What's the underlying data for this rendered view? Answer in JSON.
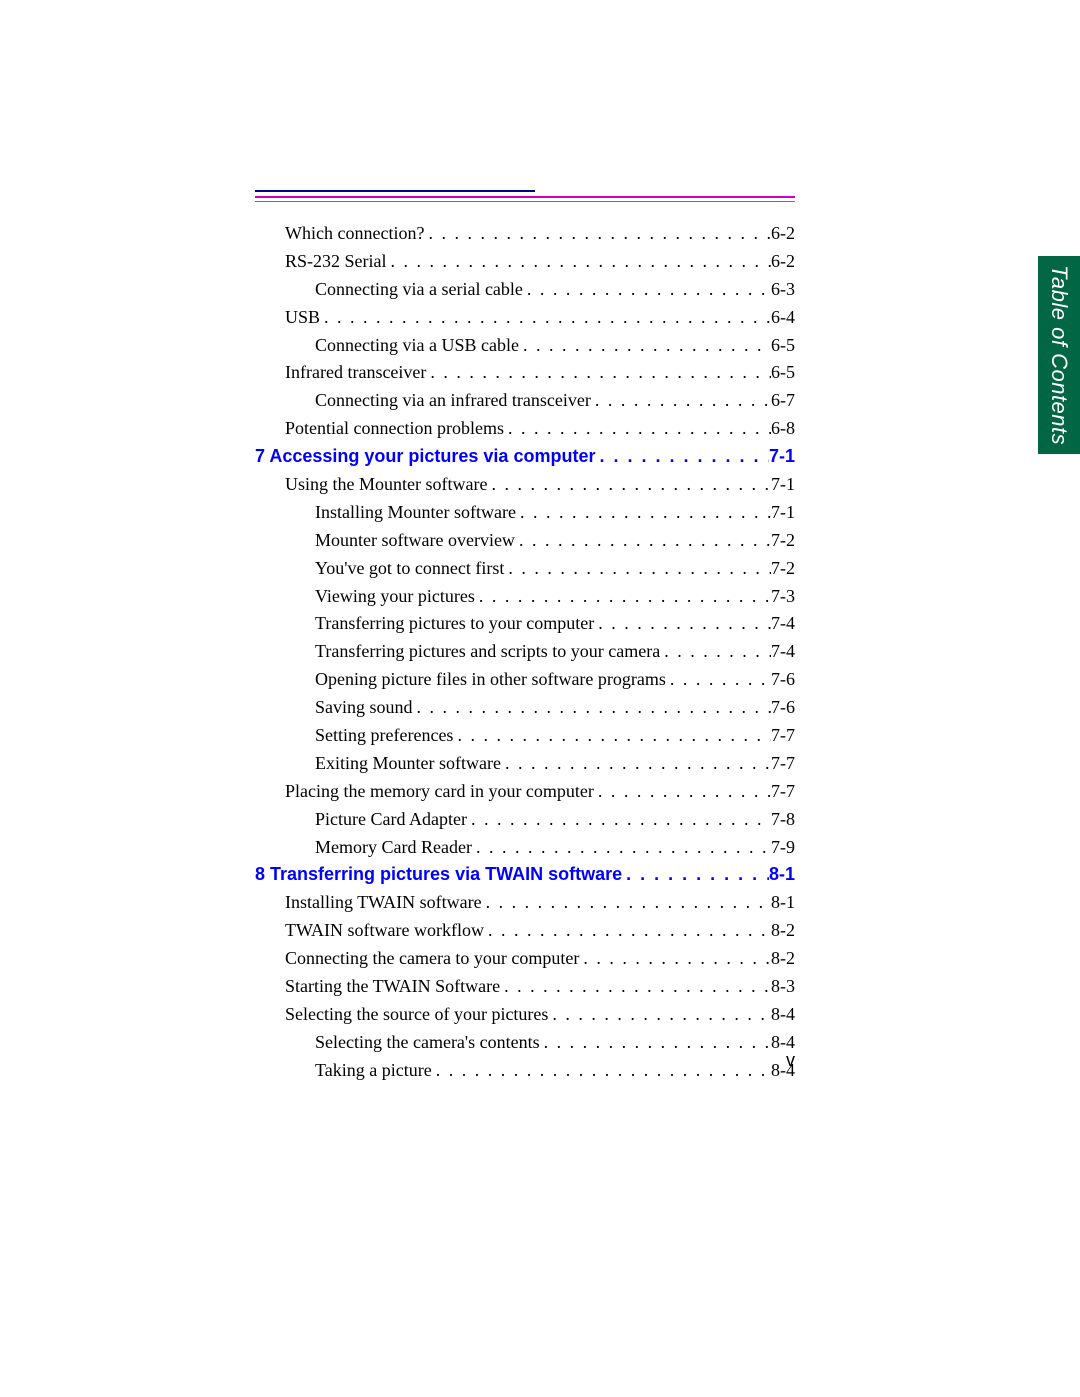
{
  "sideTab": "Table of Contents",
  "pageNumber": "v",
  "colors": {
    "chapter_link": "#0000ff",
    "side_tab_bg": "#006644",
    "side_tab_text": "#ffffff",
    "rule_blue": "#000088",
    "rule_magenta": "#cc00cc",
    "rule_violet": "#7060d0",
    "text": "#000000",
    "background": "#ffffff"
  },
  "typography": {
    "body_font": "Times New Roman",
    "heading_font": "Arial",
    "body_size_pt": 13,
    "chapter_size_pt": 13
  },
  "entries": [
    {
      "label": "Which connection?",
      "page": "6-2",
      "indent": 1,
      "chapter": false
    },
    {
      "label": "RS-232 Serial",
      "page": "6-2",
      "indent": 1,
      "chapter": false
    },
    {
      "label": "Connecting via a serial cable",
      "page": "6-3",
      "indent": 2,
      "chapter": false
    },
    {
      "label": "USB",
      "page": "6-4",
      "indent": 1,
      "chapter": false
    },
    {
      "label": "Connecting via a USB cable",
      "page": "6-5",
      "indent": 2,
      "chapter": false
    },
    {
      "label": "Infrared transceiver",
      "page": "6-5",
      "indent": 1,
      "chapter": false
    },
    {
      "label": "Connecting via an infrared transceiver",
      "page": "6-7",
      "indent": 2,
      "chapter": false
    },
    {
      "label": "Potential connection problems",
      "page": "6-8",
      "indent": 1,
      "chapter": false
    },
    {
      "label": "7 Accessing your pictures via computer",
      "page": "7-1",
      "indent": 0,
      "chapter": true
    },
    {
      "label": "Using the Mounter software",
      "page": "7-1",
      "indent": 1,
      "chapter": false
    },
    {
      "label": "Installing Mounter software",
      "page": "7-1",
      "indent": 2,
      "chapter": false
    },
    {
      "label": "Mounter software overview",
      "page": "7-2",
      "indent": 2,
      "chapter": false
    },
    {
      "label": "You've got to connect first",
      "page": "7-2",
      "indent": 2,
      "chapter": false
    },
    {
      "label": "Viewing your pictures",
      "page": "7-3",
      "indent": 2,
      "chapter": false
    },
    {
      "label": "Transferring pictures to your computer",
      "page": "7-4",
      "indent": 2,
      "chapter": false
    },
    {
      "label": "Transferring pictures and scripts to your camera",
      "page": "7-4",
      "indent": 2,
      "chapter": false
    },
    {
      "label": "Opening picture files in other software programs",
      "page": "7-6",
      "indent": 2,
      "chapter": false
    },
    {
      "label": "Saving sound",
      "page": "7-6",
      "indent": 2,
      "chapter": false
    },
    {
      "label": "Setting preferences",
      "page": "7-7",
      "indent": 2,
      "chapter": false
    },
    {
      "label": "Exiting Mounter software",
      "page": "7-7",
      "indent": 2,
      "chapter": false
    },
    {
      "label": "Placing the memory card in your computer",
      "page": "7-7",
      "indent": 1,
      "chapter": false
    },
    {
      "label": "Picture Card Adapter",
      "page": "7-8",
      "indent": 2,
      "chapter": false
    },
    {
      "label": "Memory Card Reader",
      "page": "7-9",
      "indent": 2,
      "chapter": false
    },
    {
      "label": "8 Transferring pictures via TWAIN software",
      "page": "8-1",
      "indent": 0,
      "chapter": true
    },
    {
      "label": "Installing TWAIN software",
      "page": "8-1",
      "indent": 1,
      "chapter": false
    },
    {
      "label": "TWAIN software workflow",
      "page": "8-2",
      "indent": 1,
      "chapter": false
    },
    {
      "label": "Connecting the camera to your computer",
      "page": "8-2",
      "indent": 1,
      "chapter": false
    },
    {
      "label": "Starting the TWAIN Software",
      "page": "8-3",
      "indent": 1,
      "chapter": false
    },
    {
      "label": "Selecting the source of your pictures",
      "page": "8-4",
      "indent": 1,
      "chapter": false
    },
    {
      "label": "Selecting the camera's contents",
      "page": "8-4",
      "indent": 2,
      "chapter": false
    },
    {
      "label": "Taking a picture",
      "page": "8-4",
      "indent": 2,
      "chapter": false
    }
  ]
}
